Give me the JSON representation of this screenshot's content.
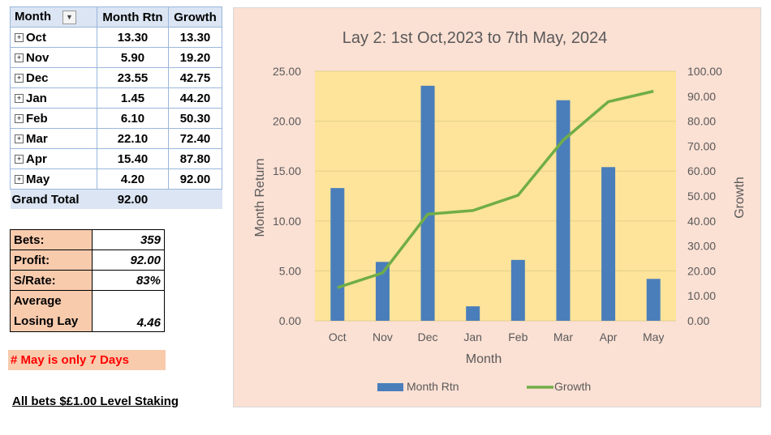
{
  "pivot": {
    "headers": [
      "Month",
      "Month Rtn",
      "Growth"
    ],
    "rows": [
      {
        "month": "Oct",
        "rtn": "13.30",
        "growth": "13.30"
      },
      {
        "month": "Nov",
        "rtn": "5.90",
        "growth": "19.20"
      },
      {
        "month": "Dec",
        "rtn": "23.55",
        "growth": "42.75"
      },
      {
        "month": "Jan",
        "rtn": "1.45",
        "growth": "44.20"
      },
      {
        "month": "Feb",
        "rtn": "6.10",
        "growth": "50.30"
      },
      {
        "month": "Mar",
        "rtn": "22.10",
        "growth": "72.40"
      },
      {
        "month": "Apr",
        "rtn": "15.40",
        "growth": "87.80"
      },
      {
        "month": "May",
        "rtn": "4.20",
        "growth": "92.00"
      }
    ],
    "grand_total_label": "Grand Total",
    "grand_total_value": "92.00"
  },
  "stats": {
    "bets_label": "Bets:",
    "bets_value": "359",
    "profit_label": "Profit:",
    "profit_value": "92.00",
    "srate_label": "S/Rate:",
    "srate_value": "83%",
    "avg_label_1": "Average",
    "avg_label_2": "Losing Lay",
    "avg_value": "4.46"
  },
  "note": "# May is only 7 Days",
  "staking": "All bets $£1.00 Level Staking",
  "colors": {
    "bar": "#4a7ebb",
    "line": "#70ad47",
    "plot_bg": "#fde49a",
    "chart_bg": "#fbe0d4",
    "note_text": "#ff0000"
  },
  "chart_data": {
    "type": "bar",
    "title": "Lay 2: 1st Oct,2023 to 7th May, 2024",
    "categories": [
      "Oct",
      "Nov",
      "Dec",
      "Jan",
      "Feb",
      "Mar",
      "Apr",
      "May"
    ],
    "series": [
      {
        "name": "Month Rtn",
        "type": "bar",
        "axis": "left",
        "values": [
          13.3,
          5.9,
          23.55,
          1.45,
          6.1,
          22.1,
          15.4,
          4.2
        ]
      },
      {
        "name": "Growth",
        "type": "line",
        "axis": "right",
        "values": [
          13.3,
          19.2,
          42.75,
          44.2,
          50.3,
          72.4,
          87.8,
          92.0
        ]
      }
    ],
    "xlabel": "Month",
    "ylabel": "Month Return",
    "y2label": "Growth",
    "ylim": [
      0,
      25
    ],
    "y2lim": [
      0,
      100
    ],
    "yticks": [
      "0.00",
      "5.00",
      "10.00",
      "15.00",
      "20.00",
      "25.00"
    ],
    "y2ticks": [
      "0.00",
      "10.00",
      "20.00",
      "30.00",
      "40.00",
      "50.00",
      "60.00",
      "70.00",
      "80.00",
      "90.00",
      "100.00"
    ],
    "grid": true,
    "legend": "bottom"
  }
}
